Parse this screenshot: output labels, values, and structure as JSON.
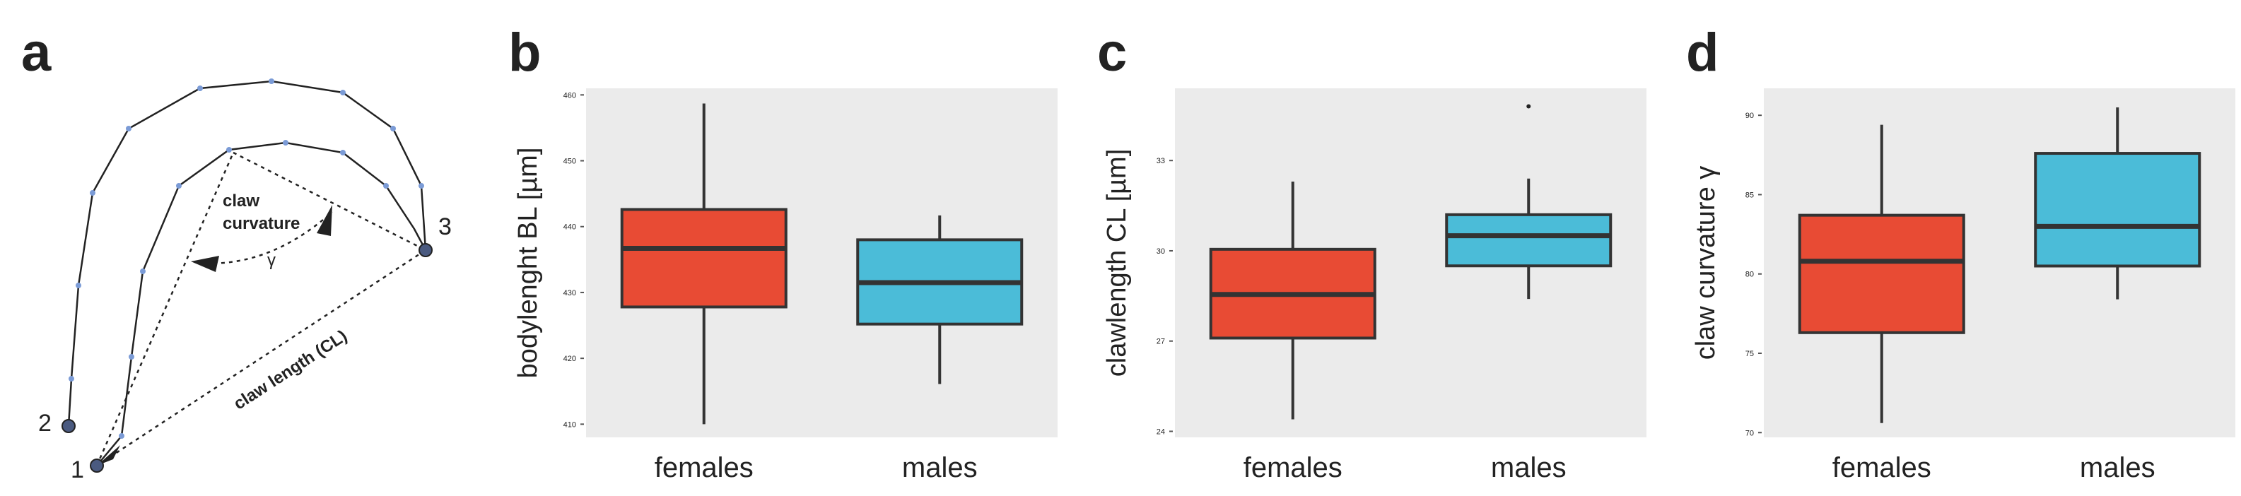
{
  "diagram": {
    "label": "a",
    "curvature_label_1": "claw",
    "curvature_label_2": "curvature",
    "angle": "γ",
    "length_label": "claw length (CL)",
    "point_1": "1",
    "point_2": "2",
    "point_3": "3"
  },
  "chart_data": [
    {
      "type": "box",
      "label": "b",
      "y_label": "bodylenght BL [µm]",
      "categories": [
        "females",
        "males"
      ],
      "colors": [
        "#e84b34",
        "#4bbcd8"
      ],
      "ylim": [
        408,
        461
      ],
      "yticks": [
        410,
        420,
        430,
        440,
        450,
        460
      ],
      "values": [
        {
          "low": 410,
          "q1": 427.8,
          "median": 436.7,
          "q3": 442.6,
          "high": 458.7,
          "outliers": []
        },
        {
          "low": 416.1,
          "q1": 425.2,
          "median": 431.5,
          "q3": 438,
          "high": 441.7,
          "outliers": []
        }
      ]
    },
    {
      "type": "box",
      "label": "c",
      "y_label": "clawlength CL [µm]",
      "categories": [
        "females",
        "males"
      ],
      "colors": [
        "#e84b34",
        "#4bbcd8"
      ],
      "ylim": [
        23.8,
        35.4
      ],
      "yticks": [
        24,
        27,
        30,
        33
      ],
      "values": [
        {
          "low": 24.4,
          "q1": 27.1,
          "median": 28.55,
          "q3": 30.05,
          "high": 32.3,
          "outliers": []
        },
        {
          "low": 28.4,
          "q1": 29.5,
          "median": 30.5,
          "q3": 31.2,
          "high": 32.4,
          "outliers": [
            34.8
          ]
        }
      ]
    },
    {
      "type": "box",
      "label": "d",
      "y_label": "claw curvature γ",
      "categories": [
        "females",
        "males"
      ],
      "colors": [
        "#e84b34",
        "#4bbcd8"
      ],
      "ylim": [
        69.7,
        91.7
      ],
      "yticks": [
        70,
        75,
        80,
        85,
        90
      ],
      "values": [
        {
          "low": 70.6,
          "q1": 76.3,
          "median": 80.8,
          "q3": 83.7,
          "high": 89.4,
          "outliers": []
        },
        {
          "low": 78.4,
          "q1": 80.5,
          "median": 83,
          "q3": 87.6,
          "high": 90.5,
          "outliers": []
        }
      ]
    }
  ]
}
